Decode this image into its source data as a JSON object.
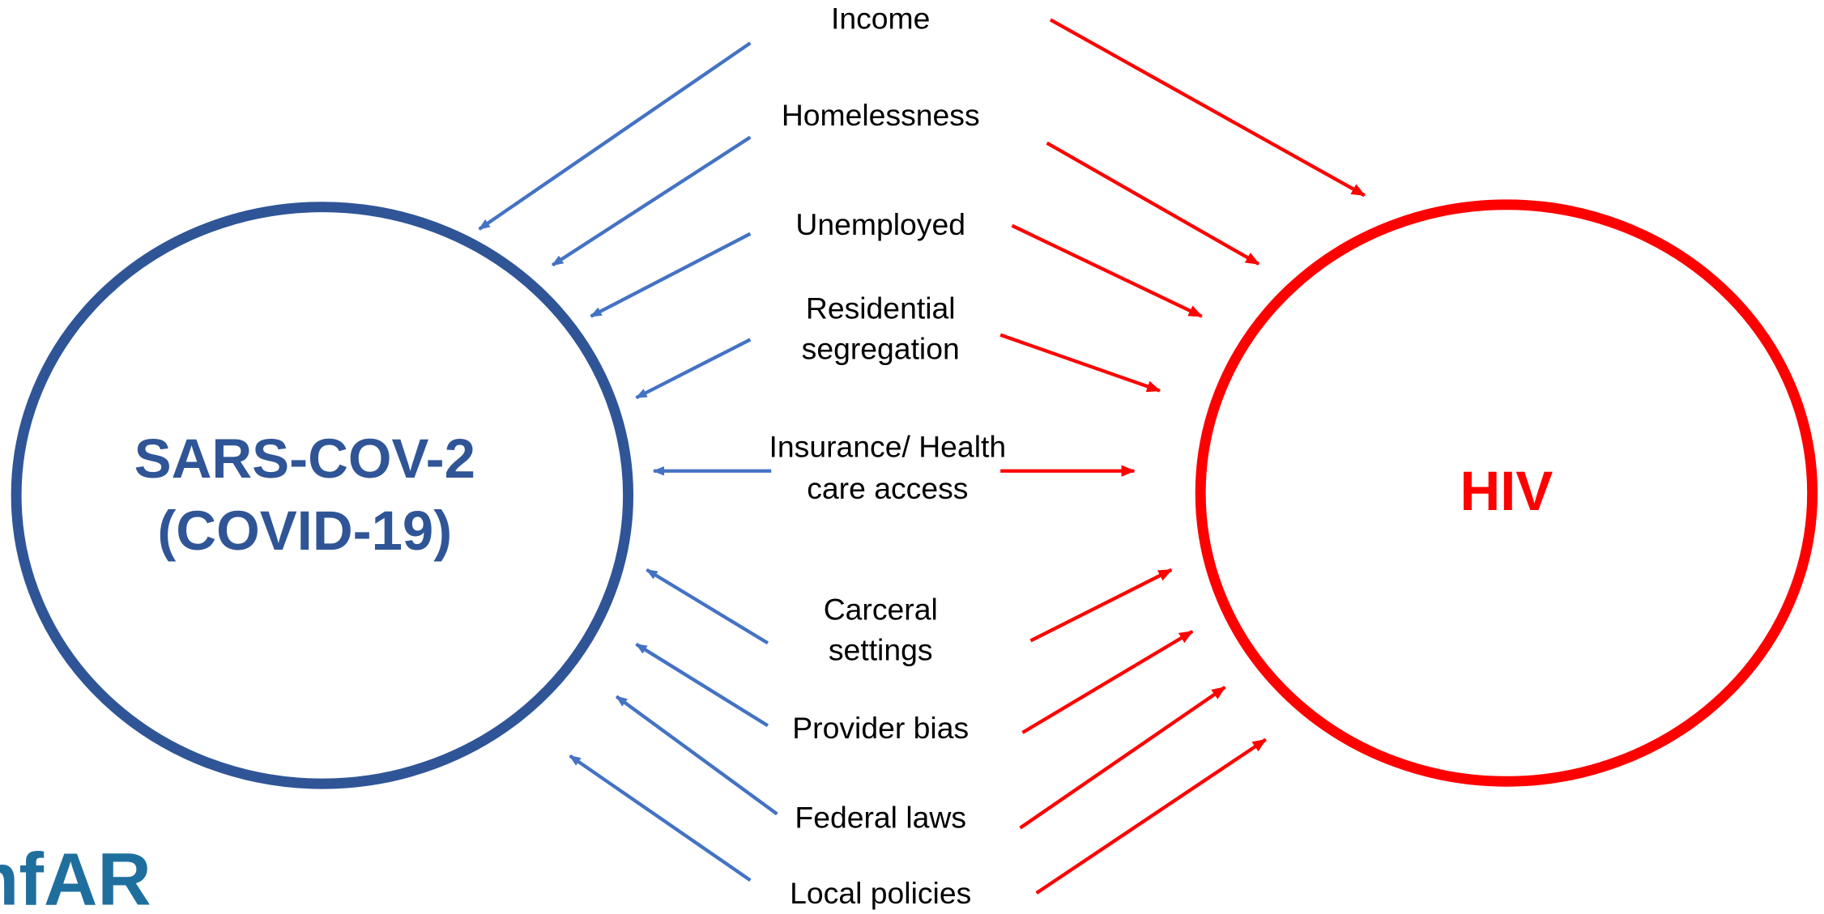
{
  "nodes": {
    "left": {
      "lines": [
        "SARS-COV-2",
        "(COVID-19)"
      ]
    },
    "right": {
      "lines": [
        "HIV"
      ]
    }
  },
  "factors": [
    {
      "lines": [
        "Income"
      ]
    },
    {
      "lines": [
        "Homelessness"
      ]
    },
    {
      "lines": [
        "Unemployed"
      ]
    },
    {
      "lines": [
        "Residential",
        "segregation"
      ]
    },
    {
      "lines": [
        "Insurance/ Health",
        "care access"
      ]
    },
    {
      "lines": [
        "Carceral",
        "settings"
      ]
    },
    {
      "lines": [
        "Provider bias"
      ]
    },
    {
      "lines": [
        "Federal laws"
      ]
    },
    {
      "lines": [
        "Local policies"
      ]
    }
  ],
  "logo": "amfAR"
}
